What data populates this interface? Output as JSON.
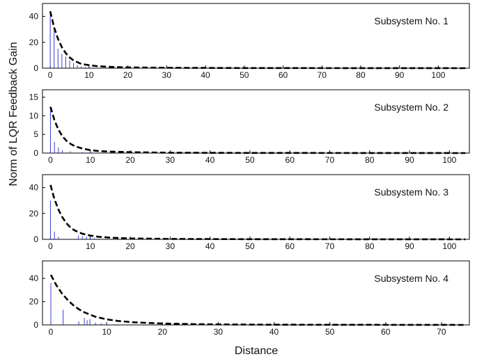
{
  "figure": {
    "xlabel": "Distance",
    "ylabel": "Norm of LQR Feedback Gain"
  },
  "colors": {
    "stem": "#3b3bd1",
    "envelope": "#000000",
    "axes": "#000000"
  },
  "chart_data": [
    {
      "type": "line",
      "title": "Subsystem No. 1",
      "xlim": [
        -2,
        108
      ],
      "ylim": [
        0,
        50
      ],
      "xticks": [
        0,
        10,
        20,
        30,
        40,
        50,
        60,
        70,
        80,
        90,
        100
      ],
      "yticks": [
        0,
        20,
        40
      ],
      "grid": false,
      "stems": {
        "x": [
          0,
          1,
          2,
          3,
          4,
          5,
          6,
          7,
          8,
          9,
          10,
          11,
          12
        ],
        "y": [
          44,
          30,
          15,
          11,
          9,
          6,
          4,
          2.5,
          1.5,
          1,
          0.6,
          0.4,
          0.3
        ]
      },
      "envelope": {
        "x": [
          0,
          1,
          2,
          3,
          4,
          5,
          6,
          8,
          10,
          12,
          15,
          20,
          30,
          50,
          107
        ],
        "y": [
          44,
          31.5,
          22.6,
          16.2,
          11.6,
          8.3,
          6.0,
          3.3,
          2.3,
          1.6,
          1.1,
          0.6,
          0.3,
          0.1,
          0
        ]
      }
    },
    {
      "type": "line",
      "title": "Subsystem No. 2",
      "xlim": [
        -2,
        105
      ],
      "ylim": [
        0,
        17
      ],
      "xticks": [
        0,
        10,
        20,
        30,
        40,
        50,
        60,
        70,
        80,
        90,
        100
      ],
      "yticks": [
        0,
        5,
        10,
        15
      ],
      "grid": false,
      "stems": {
        "x": [
          0,
          1,
          2,
          3,
          5,
          8,
          10
        ],
        "y": [
          12.5,
          3,
          1.5,
          0.8,
          0.5,
          0.3,
          0.2
        ]
      },
      "envelope": {
        "x": [
          0,
          1,
          2,
          3,
          4,
          5,
          6,
          8,
          10,
          12,
          15,
          20,
          30,
          50,
          104
        ],
        "y": [
          12.4,
          8.8,
          6.3,
          4.5,
          3.3,
          2.5,
          1.9,
          1.2,
          0.8,
          0.55,
          0.4,
          0.25,
          0.1,
          0.04,
          0
        ]
      }
    },
    {
      "type": "line",
      "title": "Subsystem No. 3",
      "xlim": [
        -2,
        105
      ],
      "ylim": [
        0,
        50
      ],
      "xticks": [
        0,
        10,
        20,
        30,
        40,
        50,
        60,
        70,
        80,
        90,
        100
      ],
      "yticks": [
        0,
        20,
        40
      ],
      "grid": false,
      "stems": {
        "x": [
          0,
          1,
          2,
          7,
          8,
          9,
          10,
          11,
          12
        ],
        "y": [
          30,
          6,
          2,
          3,
          2.5,
          2,
          1.5,
          1,
          0.5
        ]
      },
      "envelope": {
        "x": [
          0,
          1,
          2,
          3,
          4,
          5,
          6,
          8,
          10,
          12,
          15,
          20,
          30,
          50,
          104
        ],
        "y": [
          42,
          31,
          23,
          17,
          12.5,
          9.2,
          7.0,
          4.3,
          2.9,
          2.0,
          1.3,
          0.7,
          0.3,
          0.1,
          0
        ]
      }
    },
    {
      "type": "line",
      "title": "Subsystem No. 4",
      "xlim": [
        -1.5,
        75
      ],
      "ylim": [
        0,
        55
      ],
      "xticks": [
        0,
        10,
        20,
        30,
        40,
        50,
        60,
        70
      ],
      "yticks": [
        0,
        20,
        40
      ],
      "grid": false,
      "stems": {
        "x": [
          0,
          2.2,
          5,
          6,
          6.5,
          7,
          8,
          9,
          10
        ],
        "y": [
          36,
          13,
          3,
          6,
          4,
          5,
          2,
          1.5,
          1
        ]
      },
      "envelope": {
        "x": [
          0,
          1,
          2,
          3,
          4,
          5,
          6,
          8,
          10,
          12,
          15,
          20,
          25,
          30,
          40,
          74
        ],
        "y": [
          43,
          34,
          27,
          21.5,
          17,
          13.5,
          10.8,
          7.0,
          4.8,
          3.4,
          2.2,
          1.2,
          0.7,
          0.4,
          0.2,
          0
        ]
      }
    }
  ]
}
